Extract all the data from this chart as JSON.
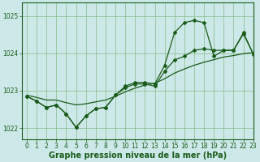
{
  "background_color": "#cce8e8",
  "grid_color": "#88bb88",
  "line_color": "#1a5c1a",
  "marker_color": "#1a5c1a",
  "xlabel": "Graphe pression niveau de la mer (hPa)",
  "xlim": [
    -0.5,
    23
  ],
  "ylim": [
    1021.7,
    1025.35
  ],
  "yticks": [
    1022,
    1023,
    1024,
    1025
  ],
  "xticks": [
    0,
    1,
    2,
    3,
    4,
    5,
    6,
    7,
    8,
    9,
    10,
    11,
    12,
    13,
    14,
    15,
    16,
    17,
    18,
    19,
    20,
    21,
    22,
    23
  ],
  "tick_fontsize": 5.5,
  "xlabel_fontsize": 7.0,
  "series_main": [
    1022.85,
    1022.72,
    1022.55,
    1022.62,
    1022.38,
    1022.02,
    1022.32,
    1022.52,
    1022.55,
    1022.88,
    1023.08,
    1023.18,
    1023.18,
    1023.12,
    1023.52,
    1023.82,
    1023.92,
    1024.08,
    1024.12,
    1024.08,
    1024.08,
    1024.08,
    1024.55,
    1023.98
  ],
  "series_spike": [
    1022.85,
    1022.72,
    1022.55,
    1022.62,
    1022.38,
    1022.02,
    1022.32,
    1022.52,
    1022.55,
    1022.88,
    1023.12,
    1023.22,
    1023.22,
    1023.18,
    1023.68,
    1024.55,
    1024.82,
    1024.88,
    1024.82,
    1023.92,
    1024.08,
    1024.08,
    1024.52,
    1023.98
  ],
  "series_smooth": [
    1022.88,
    1022.82,
    1022.75,
    1022.75,
    1022.68,
    1022.62,
    1022.65,
    1022.7,
    1022.75,
    1022.85,
    1022.97,
    1023.07,
    1023.15,
    1023.2,
    1023.32,
    1023.47,
    1023.58,
    1023.68,
    1023.76,
    1023.83,
    1023.9,
    1023.94,
    1023.99,
    1024.02
  ]
}
